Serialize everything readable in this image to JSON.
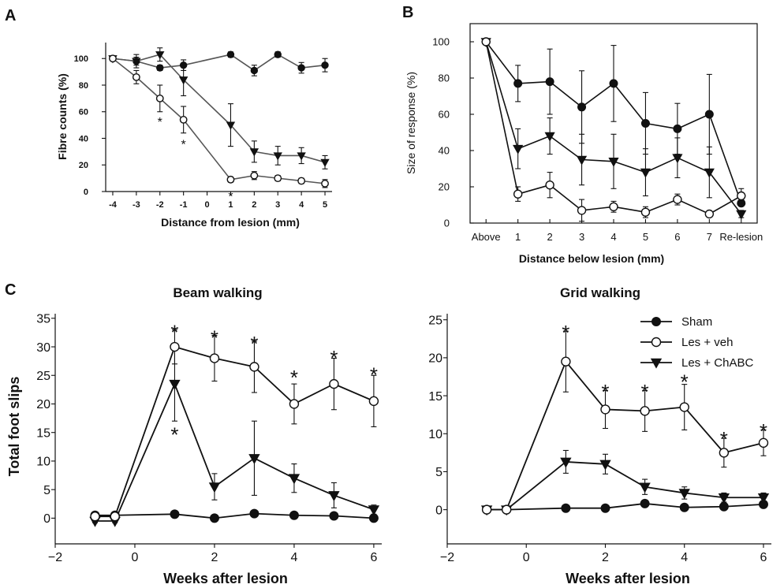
{
  "colors": {
    "ink": "#111111",
    "paper": "#ffffff",
    "gray_series": "#555555"
  },
  "chart_data": [
    {
      "panel": "A",
      "type": "line",
      "title": "",
      "xlabel": "Distance from lesion (mm)",
      "ylabel": "Fibre counts (%)",
      "xlim": [
        -4.3,
        5.3
      ],
      "ylim": [
        0,
        112
      ],
      "xticks": [
        -4,
        -3,
        -2,
        -1,
        0,
        1,
        2,
        3,
        4,
        5
      ],
      "xtick_labels": [
        "-4",
        "-3",
        "-2",
        "-1",
        "0",
        "1",
        "2",
        "3",
        "4",
        "5"
      ],
      "yticks": [
        0,
        20,
        40,
        60,
        80,
        100
      ],
      "ytick_labels": [
        "0",
        "20",
        "40",
        "60",
        "80",
        "100"
      ],
      "series": [
        {
          "name": "Sham",
          "marker": "filled-circle",
          "x": [
            -4,
            -3,
            -2,
            -1,
            1,
            2,
            3,
            4,
            5
          ],
          "y": [
            100,
            98,
            93,
            95,
            103,
            91,
            103,
            93,
            95
          ],
          "err": [
            1,
            3,
            2,
            4,
            2,
            4,
            2,
            4,
            5
          ]
        },
        {
          "name": "Les + ChABC",
          "marker": "filled-triangle-down",
          "x": [
            -4,
            -3,
            -2,
            -1,
            1,
            2,
            3,
            4,
            5
          ],
          "y": [
            100,
            98,
            103,
            84,
            50,
            30,
            27,
            27,
            22
          ],
          "err": [
            1,
            5,
            5,
            12,
            16,
            8,
            7,
            6,
            5
          ]
        },
        {
          "name": "Les + veh",
          "marker": "open-circle",
          "x": [
            -4,
            -3,
            -2,
            -1,
            1,
            2,
            3,
            4,
            5
          ],
          "y": [
            100,
            86,
            70,
            54,
            9,
            12,
            10,
            8,
            6
          ],
          "err": [
            1,
            5,
            10,
            10,
            2,
            3,
            2,
            2,
            3
          ]
        }
      ],
      "annotations": [
        {
          "text": "*",
          "x": -2,
          "y": 55
        },
        {
          "text": "*",
          "x": -1,
          "y": 38
        },
        {
          "text": "*",
          "x": 1,
          "y": -1
        }
      ]
    },
    {
      "panel": "B",
      "type": "line",
      "title": "",
      "xlabel": "Distance below lesion (mm)",
      "ylabel": "Size of response (%)",
      "xlim": [
        -0.5,
        8.5
      ],
      "ylim": [
        0,
        110
      ],
      "xticks": [
        0,
        1,
        2,
        3,
        4,
        5,
        6,
        7,
        8
      ],
      "xtick_labels": [
        "Above",
        "1",
        "2",
        "3",
        "4",
        "5",
        "6",
        "7",
        "Re-lesion"
      ],
      "yticks": [
        0,
        20,
        40,
        60,
        80,
        100
      ],
      "ytick_labels": [
        "0",
        "20",
        "40",
        "60",
        "80",
        "100"
      ],
      "series": [
        {
          "name": "Sham",
          "marker": "filled-circle",
          "x": [
            0,
            1,
            2,
            3,
            4,
            5,
            6,
            7,
            8
          ],
          "y": [
            100,
            77,
            78,
            64,
            77,
            55,
            52,
            60,
            11
          ],
          "err": [
            0,
            10,
            18,
            20,
            21,
            17,
            14,
            22,
            0
          ]
        },
        {
          "name": "Les + ChABC",
          "marker": "filled-triangle-down",
          "x": [
            0,
            1,
            2,
            3,
            4,
            5,
            6,
            7,
            8
          ],
          "y": [
            100,
            41,
            48,
            35,
            34,
            28,
            36,
            28,
            5
          ],
          "err": [
            0,
            11,
            10,
            14,
            15,
            13,
            11,
            14,
            2
          ]
        },
        {
          "name": "Les + veh",
          "marker": "open-circle",
          "x": [
            0,
            1,
            2,
            3,
            4,
            5,
            6,
            7,
            8
          ],
          "y": [
            100,
            16,
            21,
            7,
            9,
            6,
            13,
            5,
            15
          ],
          "err": [
            0,
            4,
            7,
            6,
            3,
            3,
            3,
            1,
            4
          ]
        }
      ],
      "annotations": []
    },
    {
      "panel": "C",
      "type": "line",
      "title": "Beam walking",
      "xlabel": "Weeks after lesion",
      "ylabel": "Total foot slips",
      "xlim": [
        -2,
        6.2
      ],
      "ylim": [
        -4.5,
        35.8
      ],
      "xticks": [
        -2,
        0,
        2,
        4,
        6
      ],
      "xtick_labels": [
        "−2",
        "0",
        "2",
        "4",
        "6"
      ],
      "yticks": [
        0,
        5,
        10,
        15,
        20,
        25,
        30,
        35
      ],
      "ytick_labels": [
        "0",
        "5",
        "10",
        "15",
        "20",
        "25",
        "30",
        "35"
      ],
      "series": [
        {
          "name": "Sham",
          "marker": "filled-circle",
          "x": [
            -1,
            -0.5,
            1,
            2,
            3,
            4,
            5,
            6
          ],
          "y": [
            0.5,
            0.5,
            0.7,
            0,
            0.8,
            0.5,
            0.4,
            0
          ],
          "err": [
            0.2,
            0.2,
            0.3,
            0.2,
            0.3,
            0.2,
            0.2,
            0.2
          ]
        },
        {
          "name": "Les + ChABC",
          "marker": "filled-triangle-down",
          "x": [
            -1,
            -0.5,
            1,
            2,
            3,
            4,
            5,
            6
          ],
          "y": [
            -0.5,
            -0.5,
            23.5,
            5.5,
            10.5,
            7,
            4,
            1.5
          ],
          "err": [
            0.3,
            0.3,
            6.5,
            2.3,
            6.5,
            2.5,
            2.2,
            0.8
          ]
        },
        {
          "name": "Les + veh",
          "marker": "open-circle",
          "x": [
            -1,
            -0.5,
            1,
            2,
            3,
            4,
            5,
            6
          ],
          "y": [
            0.3,
            0.3,
            30,
            28,
            26.5,
            20,
            23.5,
            20.5
          ],
          "err": [
            0.3,
            0.3,
            3,
            4,
            4.5,
            3.5,
            4.5,
            4.5
          ]
        }
      ],
      "annotations": [
        {
          "text": "*",
          "x": 1,
          "y": 33.5
        },
        {
          "text": "*",
          "x": 1,
          "y": 15.5
        },
        {
          "text": "*",
          "x": 2,
          "y": 32.5
        },
        {
          "text": "*",
          "x": 3,
          "y": 31.5
        },
        {
          "text": "*",
          "x": 4,
          "y": 25.5
        },
        {
          "text": "*",
          "x": 5,
          "y": 29
        },
        {
          "text": "*",
          "x": 6,
          "y": 26
        }
      ]
    },
    {
      "panel": "C",
      "type": "line",
      "title": "Grid walking",
      "xlabel": "Weeks after lesion",
      "ylabel": "",
      "xlim": [
        -2,
        6.2
      ],
      "ylim": [
        -4.5,
        25.8
      ],
      "xticks": [
        -2,
        0,
        2,
        4,
        6
      ],
      "xtick_labels": [
        "−2",
        "0",
        "2",
        "4",
        "6"
      ],
      "yticks": [
        0,
        5,
        10,
        15,
        20,
        25
      ],
      "ytick_labels": [
        "0",
        "5",
        "10",
        "15",
        "20",
        "25"
      ],
      "legend": {
        "location": "top-right",
        "entries": [
          "Sham",
          "Les + veh",
          "Les + ChABC"
        ]
      },
      "series": [
        {
          "name": "Sham",
          "marker": "filled-circle",
          "x": [
            -1,
            -0.5,
            1,
            2,
            3,
            4,
            5,
            6
          ],
          "y": [
            0,
            0,
            0.2,
            0.2,
            0.8,
            0.3,
            0.4,
            0.7
          ],
          "err": [
            0.2,
            0.2,
            0.2,
            0.2,
            0.3,
            0.2,
            0.2,
            0.3
          ]
        },
        {
          "name": "Les + ChABC",
          "marker": "filled-triangle-down",
          "x": [
            -1,
            -0.5,
            1,
            2,
            3,
            4,
            5,
            6
          ],
          "y": [
            0,
            0,
            6.3,
            6,
            3,
            2.2,
            1.6,
            1.6
          ],
          "err": [
            0.2,
            0.2,
            1.5,
            1.3,
            1,
            0.8,
            0.6,
            0.6
          ]
        },
        {
          "name": "Les + veh",
          "marker": "open-circle",
          "x": [
            -1,
            -0.5,
            1,
            2,
            3,
            4,
            5,
            6
          ],
          "y": [
            0,
            0,
            19.5,
            13.2,
            13,
            13.5,
            7.5,
            8.8
          ],
          "err": [
            0.2,
            0.2,
            4,
            2.5,
            2.7,
            3,
            1.9,
            1.7
          ]
        }
      ],
      "annotations": [
        {
          "text": "*",
          "x": 1,
          "y": 24
        },
        {
          "text": "*",
          "x": 2,
          "y": 16.2
        },
        {
          "text": "*",
          "x": 3,
          "y": 16.2
        },
        {
          "text": "*",
          "x": 4,
          "y": 17.5
        },
        {
          "text": "*",
          "x": 5,
          "y": 10
        },
        {
          "text": "*",
          "x": 6,
          "y": 11
        }
      ]
    }
  ],
  "panel_labels": {
    "a": "A",
    "b": "B",
    "c": "C"
  }
}
